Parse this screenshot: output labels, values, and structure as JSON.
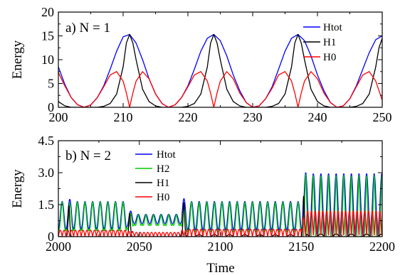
{
  "chart_data": [
    {
      "type": "line",
      "panel_label": "a)  N = 1",
      "xlabel": "",
      "ylabel": "Energy",
      "xlim": [
        200,
        250
      ],
      "ylim": [
        0,
        20
      ],
      "x_ticks": [
        200,
        210,
        220,
        230,
        240,
        250
      ],
      "y_ticks": [
        0,
        5,
        10,
        15,
        20
      ],
      "legend_position": "top-right",
      "series": [
        {
          "name": "Htot",
          "color": "#0000ff",
          "x": [
            200,
            201,
            202,
            203,
            204,
            205,
            206,
            207,
            208,
            209,
            210,
            211,
            212,
            213,
            214,
            215,
            216,
            217,
            218,
            219,
            220,
            221,
            222,
            223,
            224,
            225,
            226,
            227,
            228,
            229,
            230,
            231,
            232,
            233,
            234,
            235,
            236,
            237,
            238,
            239,
            240,
            241,
            242,
            243,
            244,
            245,
            246,
            247,
            248,
            249,
            250
          ],
          "values": [
            8.5,
            4.8,
            2.0,
            0.5,
            0.0,
            0.5,
            2.0,
            4.5,
            8.0,
            11.8,
            14.8,
            15.3,
            13.5,
            10.0,
            6.0,
            2.8,
            0.8,
            0.0,
            0.5,
            2.0,
            4.5,
            8.0,
            11.8,
            14.5,
            15.3,
            14.0,
            10.8,
            6.8,
            3.5,
            1.0,
            0.0,
            0.3,
            1.8,
            4.3,
            8.0,
            11.8,
            14.5,
            15.3,
            14.0,
            10.8,
            6.8,
            3.5,
            1.0,
            0.0,
            0.3,
            1.8,
            4.5,
            8.0,
            11.5,
            14.2,
            15.0
          ]
        },
        {
          "name": "H1",
          "color": "#000000",
          "x": [
            200,
            201,
            202,
            203,
            206,
            207,
            208,
            209,
            210,
            210.5,
            211,
            211.5,
            212,
            213,
            214,
            215,
            216,
            219,
            220,
            221,
            222,
            223,
            223.5,
            224,
            224.5,
            225,
            226,
            227,
            228,
            229,
            232,
            233,
            234,
            235,
            236,
            236.5,
            237,
            237.5,
            238,
            239,
            240,
            241,
            242,
            245,
            246,
            247,
            248,
            249,
            249.5,
            250
          ],
          "values": [
            1.2,
            0.3,
            0.0,
            0.0,
            0.0,
            0.2,
            0.8,
            2.8,
            8.5,
            13.5,
            15.3,
            13.5,
            10.0,
            3.8,
            1.2,
            0.3,
            0.0,
            0.0,
            0.2,
            0.8,
            2.8,
            8.5,
            13.5,
            15.3,
            13.5,
            10.0,
            3.8,
            1.2,
            0.3,
            0.0,
            0.0,
            0.2,
            0.8,
            2.8,
            8.5,
            13.5,
            15.3,
            13.5,
            10.0,
            3.8,
            1.2,
            0.3,
            0.0,
            0.0,
            0.2,
            0.8,
            2.8,
            8.5,
            12.5,
            14.5
          ]
        },
        {
          "name": "H0",
          "color": "#ff0000",
          "x": [
            200,
            201,
            202,
            203,
            204,
            205,
            206,
            207,
            208,
            209,
            210,
            210.5,
            211,
            211.5,
            212,
            213,
            214,
            215,
            216,
            217,
            218,
            219,
            220,
            221,
            222,
            223,
            223.5,
            224,
            224.5,
            225,
            226,
            227,
            228,
            229,
            230,
            231,
            232,
            233,
            234,
            235,
            236,
            236.5,
            237,
            237.5,
            238,
            239,
            240,
            241,
            242,
            243,
            244,
            245,
            246,
            247,
            248,
            249,
            249.5,
            250
          ],
          "values": [
            7.3,
            4.5,
            2.0,
            0.5,
            0.0,
            0.5,
            2.0,
            4.3,
            6.8,
            7.5,
            5.5,
            3.0,
            0.0,
            3.0,
            5.5,
            7.5,
            6.0,
            2.8,
            0.8,
            0.0,
            0.5,
            2.0,
            4.3,
            6.8,
            7.5,
            5.5,
            3.0,
            0.0,
            3.0,
            5.5,
            7.5,
            6.0,
            3.0,
            1.0,
            0.0,
            0.3,
            1.8,
            4.0,
            6.8,
            7.5,
            5.5,
            3.0,
            0.0,
            3.0,
            5.5,
            7.5,
            6.0,
            3.0,
            1.0,
            0.0,
            0.3,
            1.8,
            4.3,
            6.8,
            7.5,
            5.5,
            3.5,
            1.5
          ]
        }
      ]
    },
    {
      "type": "line",
      "panel_label": "b)  N = 2",
      "xlabel": "Time",
      "ylabel": "Energy",
      "xlim": [
        2000,
        2200
      ],
      "ylim": [
        0,
        4.5
      ],
      "x_ticks": [
        2000,
        2050,
        2100,
        2150,
        2200
      ],
      "y_ticks": [
        0,
        1.5,
        3.0,
        4.5
      ],
      "y_tick_labels": [
        "0",
        "1.5",
        "3.0",
        "4.5"
      ],
      "legend_position": "top-left",
      "oscillation_period": 4.7,
      "segments": [
        {
          "t_start": 2000,
          "t_end": 2005,
          "htot_max": 1.65,
          "htot_min": 0.35,
          "h0_max": 0.3,
          "h1": "none"
        },
        {
          "t_start": 2005,
          "t_end": 2008,
          "htot_max": 1.75,
          "htot_min": 0.3,
          "h0_max": 0.3,
          "h1": "spike",
          "h1_peak": 1.45
        },
        {
          "t_start": 2008,
          "t_end": 2042,
          "htot_max": 1.65,
          "htot_min": 0.35,
          "h0_max": 0.3,
          "h1": "none"
        },
        {
          "t_start": 2042,
          "t_end": 2046,
          "htot_max": 1.2,
          "htot_min": 0.45,
          "h0_max": 0.25,
          "h1": "spike",
          "h1_peak": 1.1
        },
        {
          "t_start": 2046,
          "t_end": 2076,
          "htot_max": 1.05,
          "htot_min": 0.6,
          "h0_max": 0.2,
          "h1": "none"
        },
        {
          "t_start": 2076,
          "t_end": 2079,
          "htot_max": 1.78,
          "htot_min": 0.3,
          "h0_max": 0.3,
          "h1": "spike",
          "h1_peak": 1.6
        },
        {
          "t_start": 2079,
          "t_end": 2150,
          "htot_max": 1.65,
          "htot_min": 0.3,
          "h0_max": 0.35,
          "h1": "small",
          "h1_peak": 0.15
        },
        {
          "t_start": 2150,
          "t_end": 2153,
          "htot_max": 3.0,
          "htot_min": 0.0,
          "h0_max": 0.9,
          "h1": "spike",
          "h1_peak": 1.9
        },
        {
          "t_start": 2153,
          "t_end": 2200,
          "htot_max": 2.95,
          "htot_min": 0.0,
          "h0_max": 1.2,
          "h1": "small",
          "h1_peak": 0.2
        }
      ],
      "series": [
        {
          "name": "Htot",
          "color": "#0000ff"
        },
        {
          "name": "H2",
          "color": "#00cc00"
        },
        {
          "name": "H1",
          "color": "#000000"
        },
        {
          "name": "H0",
          "color": "#ff0000"
        }
      ]
    }
  ]
}
